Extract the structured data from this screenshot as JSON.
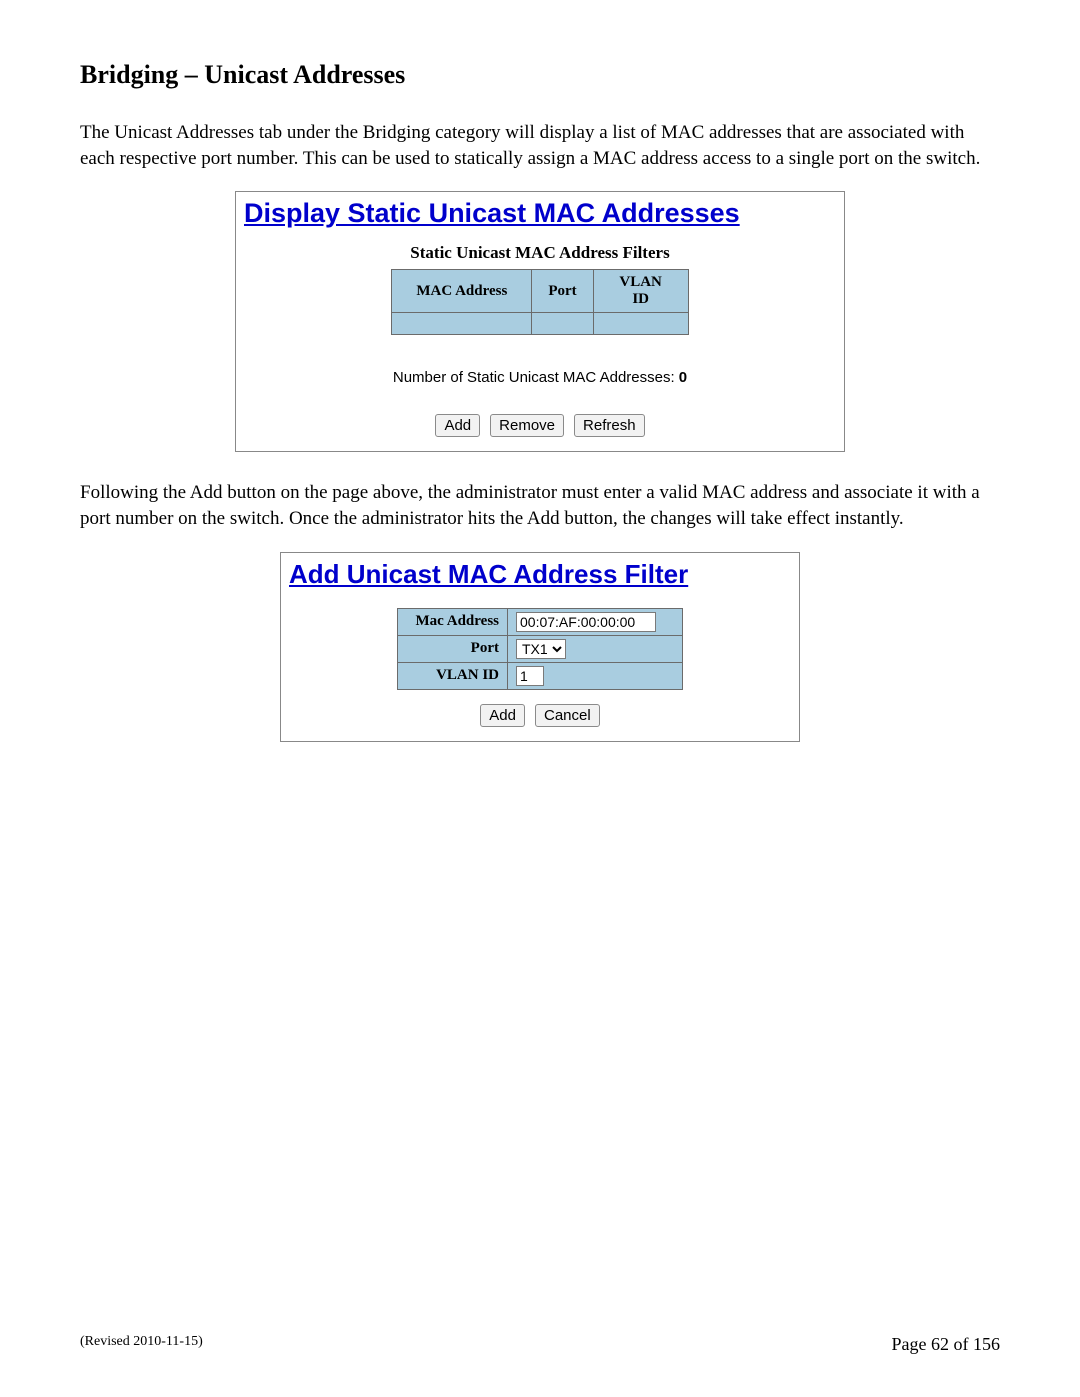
{
  "page": {
    "title": "Bridging – Unicast Addresses",
    "para1": "The Unicast Addresses tab under the Bridging category will display a list of MAC addresses that are associated with each respective port number.  This can be used to statically assign a MAC address access to a single port on the switch.",
    "para2": "Following the Add button on the page above, the administrator must enter a valid MAC address and associate it with a port number on the switch.  Once the administrator hits the Add button, the changes will take effect instantly."
  },
  "panel1": {
    "title": "Display Static Unicast MAC Addresses",
    "caption": "Static Unicast MAC Address Filters",
    "col_mac": "MAC Address",
    "col_port": "Port",
    "col_vlan": "VLAN ID",
    "count_label": "Number of Static Unicast MAC Addresses: ",
    "count_value": "0",
    "btn_add": "Add",
    "btn_remove": "Remove",
    "btn_refresh": "Refresh",
    "header_bg": "#a9cde0",
    "border_color": "#6b6b6b"
  },
  "panel2": {
    "title": "Add Unicast MAC Address Filter",
    "row_mac_label": "Mac Address",
    "row_mac_value": "00:07:AF:00:00:00",
    "row_port_label": "Port",
    "row_port_value": "TX1",
    "row_vlan_label": "VLAN ID",
    "row_vlan_value": "1",
    "btn_add": "Add",
    "btn_cancel": "Cancel"
  },
  "footer": {
    "revised": "(Revised 2010-11-15)",
    "page": "Page 62 of 156"
  },
  "colors": {
    "link_title": "#0000cc",
    "cell_bg": "#a9cde0",
    "border": "#6b6b6b",
    "button_bg": "#f2f2f2"
  }
}
